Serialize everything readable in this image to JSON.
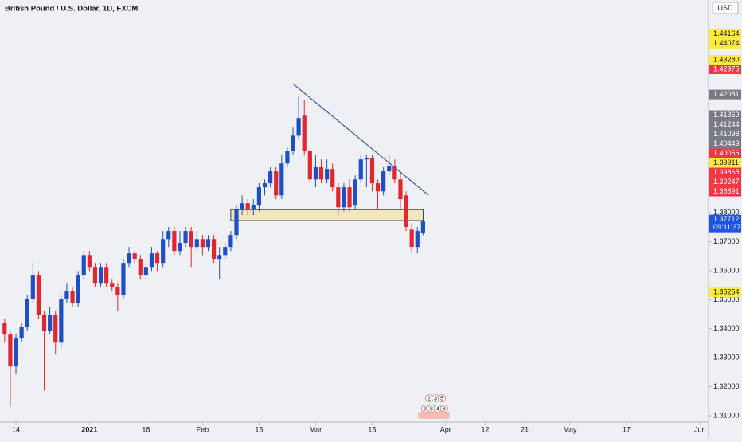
{
  "chart_data": {
    "type": "candlestick",
    "title": "British Pound / U.S. Dollar, 1D, FXCM",
    "currency": "USD",
    "colors": {
      "up": "#1f4fc4",
      "down": "#e0262f"
    },
    "x": [
      -2,
      -1,
      0,
      1,
      2,
      3,
      4,
      5,
      6,
      7,
      8,
      9,
      10,
      11,
      12,
      13,
      14,
      15,
      16,
      17,
      18,
      19,
      20,
      21,
      22,
      23,
      24,
      25,
      26,
      27,
      28,
      29,
      30,
      31,
      32,
      33,
      34,
      35,
      36,
      37,
      38,
      39,
      40,
      41,
      42,
      43,
      44,
      45,
      46,
      47,
      48,
      49,
      50,
      51,
      52,
      53,
      54,
      55,
      56,
      57,
      58,
      59,
      60,
      61,
      62,
      63,
      64,
      65,
      66,
      67,
      68,
      69,
      70,
      71,
      72
    ],
    "open": [
      1.3421,
      1.338,
      1.327,
      1.3366,
      1.3407,
      1.3503,
      1.3586,
      1.3448,
      1.3393,
      1.3448,
      1.3352,
      1.3503,
      1.3531,
      1.349,
      1.3586,
      1.3654,
      1.3613,
      1.3558,
      1.3613,
      1.3558,
      1.3545,
      1.3517,
      1.3627,
      1.366,
      1.3641,
      1.3586,
      1.3613,
      1.366,
      1.3627,
      1.3709,
      1.3737,
      1.3668,
      1.3696,
      1.3737,
      1.3682,
      1.3709,
      1.3682,
      1.3709,
      1.3641,
      1.3654,
      1.3682,
      1.3723,
      1.3814,
      1.3833,
      1.3814,
      1.3825,
      1.3888,
      1.3902,
      1.3943,
      1.386,
      1.397,
      1.4012,
      1.4066,
      1.4135,
      1.4012,
      1.3915,
      1.3957,
      1.3915,
      1.3951,
      1.3888,
      1.3819,
      1.3888,
      1.3825,
      1.3915,
      1.3984,
      1.399,
      1.3902,
      1.3874,
      1.3943,
      1.3962,
      1.3915,
      1.386,
      1.3742,
      1.3682,
      1.3731
    ],
    "high": [
      1.3435,
      1.3393,
      1.338,
      1.3421,
      1.3517,
      1.3627,
      1.3599,
      1.3462,
      1.3476,
      1.3462,
      1.3517,
      1.3558,
      1.3545,
      1.3599,
      1.3668,
      1.3668,
      1.3627,
      1.3627,
      1.3627,
      1.3572,
      1.3558,
      1.3641,
      1.3682,
      1.3668,
      1.3654,
      1.3627,
      1.3682,
      1.3668,
      1.3737,
      1.3751,
      1.3751,
      1.3737,
      1.3751,
      1.3751,
      1.3737,
      1.3723,
      1.3723,
      1.3723,
      1.3682,
      1.3696,
      1.3737,
      1.3825,
      1.386,
      1.3847,
      1.3847,
      1.3902,
      1.3915,
      1.3957,
      1.3957,
      1.3998,
      1.4025,
      1.4094,
      1.4204,
      1.419,
      1.4025,
      1.3998,
      1.3984,
      1.3984,
      1.397,
      1.3902,
      1.3902,
      1.3915,
      1.3929,
      1.3998,
      1.3998,
      1.3998,
      1.3915,
      1.3957,
      1.3998,
      1.3984,
      1.3943,
      1.3874,
      1.3764,
      1.3751,
      1.3764
    ],
    "low": [
      1.3352,
      1.3132,
      1.3242,
      1.3352,
      1.3393,
      1.349,
      1.3435,
      1.3187,
      1.338,
      1.3311,
      1.3338,
      1.349,
      1.3476,
      1.3476,
      1.3572,
      1.3599,
      1.3545,
      1.3545,
      1.3545,
      1.3531,
      1.3462,
      1.3503,
      1.3613,
      1.3627,
      1.3572,
      1.3572,
      1.3599,
      1.3599,
      1.3613,
      1.3682,
      1.3654,
      1.3654,
      1.3682,
      1.3613,
      1.3668,
      1.3654,
      1.3668,
      1.3627,
      1.3572,
      1.3641,
      1.3668,
      1.3709,
      1.3792,
      1.3792,
      1.3792,
      1.3805,
      1.386,
      1.3888,
      1.3847,
      1.3847,
      1.3957,
      1.3998,
      1.4053,
      1.3998,
      1.3902,
      1.3888,
      1.3902,
      1.3902,
      1.3874,
      1.3792,
      1.3805,
      1.3805,
      1.3814,
      1.3902,
      1.3888,
      1.3874,
      1.3814,
      1.386,
      1.3929,
      1.3902,
      1.3814,
      1.3737,
      1.366,
      1.366,
      1.3723
    ],
    "close": [
      1.338,
      1.327,
      1.3366,
      1.3407,
      1.3503,
      1.3586,
      1.3448,
      1.3393,
      1.3448,
      1.3352,
      1.3503,
      1.3531,
      1.349,
      1.3586,
      1.3654,
      1.3613,
      1.3558,
      1.3613,
      1.3558,
      1.3545,
      1.3517,
      1.3627,
      1.366,
      1.3641,
      1.3586,
      1.3613,
      1.366,
      1.3627,
      1.3709,
      1.3737,
      1.3668,
      1.3696,
      1.3737,
      1.3682,
      1.3709,
      1.3682,
      1.3709,
      1.3641,
      1.3654,
      1.3682,
      1.3723,
      1.3814,
      1.3833,
      1.3814,
      1.3825,
      1.3888,
      1.3902,
      1.3943,
      1.386,
      1.397,
      1.4012,
      1.4066,
      1.4127,
      1.4012,
      1.3915,
      1.3957,
      1.3915,
      1.3951,
      1.3888,
      1.3819,
      1.3888,
      1.3819,
      1.3915,
      1.3984,
      1.399,
      1.3902,
      1.3874,
      1.3943,
      1.3962,
      1.3915,
      1.3847,
      1.3751,
      1.3682,
      1.3737,
      1.37712
    ],
    "xlim": [
      -2.82,
      122.5
    ],
    "xticks": [
      {
        "value": 0,
        "label": "14"
      },
      {
        "value": 13,
        "label": "2021"
      },
      {
        "value": 23,
        "label": "18"
      },
      {
        "value": 33,
        "label": "Feb"
      },
      {
        "value": 43,
        "label": "15"
      },
      {
        "value": 53,
        "label": "Mar"
      },
      {
        "value": 63,
        "label": "15"
      },
      {
        "value": 76,
        "label": "Apr"
      },
      {
        "value": 83,
        "label": "12"
      },
      {
        "value": 90,
        "label": "21"
      },
      {
        "value": 98,
        "label": "May"
      },
      {
        "value": 108,
        "label": "17"
      },
      {
        "value": 121,
        "label": "Jun"
      }
    ],
    "ylim": [
      1.3078,
      1.4534
    ],
    "yticks": [
      {
        "value": 1.38,
        "label": "1.38000"
      },
      {
        "value": 1.37,
        "label": "1.37000"
      },
      {
        "value": 1.36,
        "label": "1.36000"
      },
      {
        "value": 1.35,
        "label": "1.35000"
      },
      {
        "value": 1.34,
        "label": "1.34000"
      },
      {
        "value": 1.33,
        "label": "1.33000"
      },
      {
        "value": 1.32,
        "label": "1.32000"
      },
      {
        "value": 1.31,
        "label": "1.31000"
      }
    ],
    "price_markers": [
      {
        "value": 1.44164,
        "label": "1.44164",
        "color": "#ffeb3b",
        "text_color": "#131722"
      },
      {
        "value": 1.44074,
        "label": "1.44074",
        "color": "#ffeb3b",
        "text_color": "#131722"
      },
      {
        "value": 1.4328,
        "label": "1.43280",
        "color": "#ffeb3b",
        "text_color": "#131722"
      },
      {
        "value": 1.42975,
        "label": "1.42975",
        "color": "#f23645",
        "text_color": "#ffffff"
      },
      {
        "value": 1.42081,
        "label": "1.42081",
        "color": "#787b86",
        "text_color": "#ffffff"
      },
      {
        "value": 1.41369,
        "label": "1.41369",
        "color": "#787b86",
        "text_color": "#ffffff"
      },
      {
        "value": 1.41244,
        "label": "1.41244",
        "color": "#787b86",
        "text_color": "#ffffff"
      },
      {
        "value": 1.41098,
        "label": "1.41098",
        "color": "#787b86",
        "text_color": "#ffffff"
      },
      {
        "value": 1.40449,
        "label": "1.40449",
        "color": "#787b86",
        "text_color": "#ffffff"
      },
      {
        "value": 1.40056,
        "label": "1.40056",
        "color": "#f23645",
        "text_color": "#ffffff"
      },
      {
        "value": 1.39911,
        "label": "1.39911",
        "color": "#ffeb3b",
        "text_color": "#131722"
      },
      {
        "value": 1.39868,
        "label": "1.39868",
        "color": "#f23645",
        "text_color": "#ffffff"
      },
      {
        "value": 1.39247,
        "label": "1.39247",
        "color": "#f23645",
        "text_color": "#ffffff"
      },
      {
        "value": 1.38891,
        "label": "1.38891",
        "color": "#f23645",
        "text_color": "#ffffff"
      },
      {
        "value": 1.35254,
        "label": "1.35254",
        "color": "#ffeb3b",
        "text_color": "#131722"
      }
    ],
    "current_price": {
      "value": 1.37712,
      "label": "1.37712",
      "countdown": "09:11:37",
      "color": "#1e53e5"
    },
    "drawings": {
      "trendline": {
        "x": [
          49,
          73
        ],
        "y": [
          1.4245,
          1.386
        ],
        "color": "#3f51a8"
      },
      "zone": {
        "x": [
          38,
          72
        ],
        "y": [
          1.3811,
          1.3773
        ],
        "color": "#f0e5b5"
      }
    },
    "events": [
      [
        "2",
        "3",
        "5"
      ],
      [
        "3",
        "8",
        "4",
        "8"
      ]
    ]
  }
}
